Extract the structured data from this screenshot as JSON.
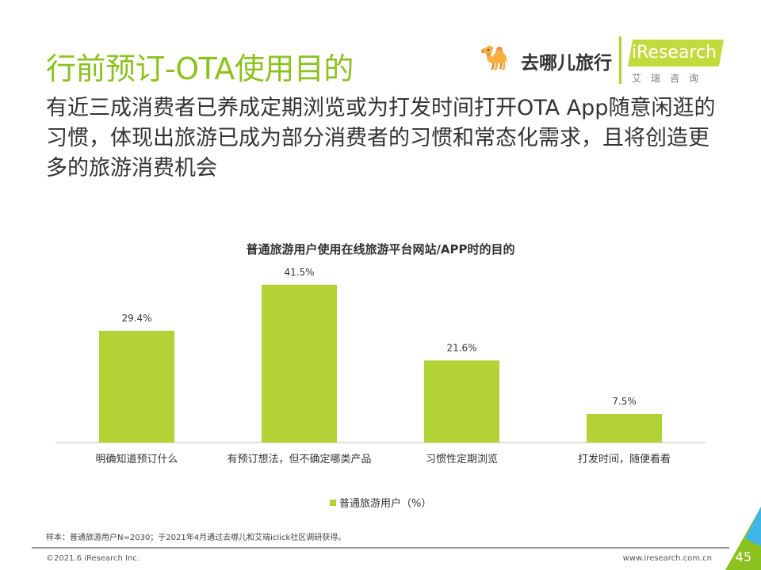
{
  "header": {
    "title": "行前预订-OTA使用目的",
    "subtitle": "有近三成消费者已养成定期浏览或为打发时间打开OTA App随意闲逛的习惯，体现出旅游已成为部分消费者的习惯和常态化需求，且将创造更多的旅游消费机会"
  },
  "logo": {
    "qunar": "去哪儿旅行",
    "iresearch": "iResearch",
    "iresearch_cn": "艾瑞咨询"
  },
  "chart_data": {
    "type": "bar",
    "title": "普通旅游用户使用在线旅游平台网站/APP时的目的",
    "categories": [
      "明确知道预订什么",
      "有预订想法，但不确定哪类产品",
      "习惯性定期浏览",
      "打发时间，随便看看"
    ],
    "values": [
      29.4,
      41.5,
      21.6,
      7.5
    ],
    "labels": [
      "29.4%",
      "41.5%",
      "21.6%",
      "7.5%"
    ],
    "legend": "普通旅游用户（%）",
    "legend_position": "bottom",
    "ylim": [
      0,
      45
    ],
    "color": "#b2d235"
  },
  "footer": {
    "note": "样本：普通旅游用户N=2030；于2021年4月通过去哪儿和艾瑞iclick社区调研获得。",
    "copyright": "©2021.6 iResearch Inc.",
    "website": "www.iresearch.com.cn",
    "page": "45"
  }
}
